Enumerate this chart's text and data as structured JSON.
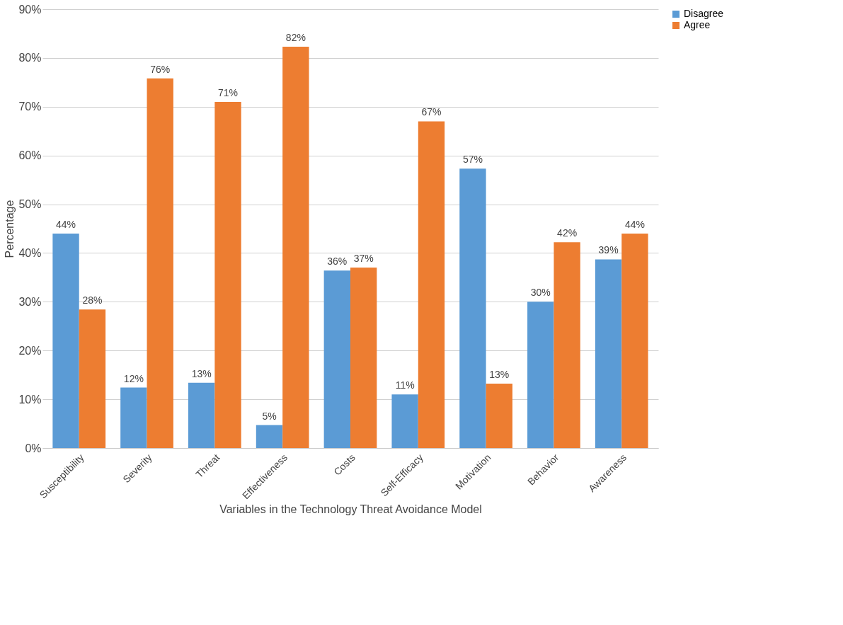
{
  "chart_data": {
    "type": "bar",
    "xlabel": "Variables in the Technology Threat Avoidance Model",
    "ylabel": "Percentage",
    "categories": [
      "Susceptibility",
      "Severity",
      "Threat",
      "Effectiveness",
      "Costs",
      "Self-Efficacy",
      "Motivation",
      "Behavior",
      "Awareness"
    ],
    "series": [
      {
        "name": "Disagree",
        "color": "#5b9bd5",
        "values": [
          44,
          12.4,
          13.4,
          4.7,
          36.4,
          11,
          57.3,
          30,
          38.7
        ],
        "value_labels": [
          "44%",
          "12%",
          "13%",
          "5%",
          "36%",
          "11%",
          "57%",
          "30%",
          "39%"
        ]
      },
      {
        "name": "Agree",
        "color": "#ed7d31",
        "values": [
          28.4,
          75.8,
          71,
          82.3,
          37,
          67,
          13.2,
          42.2,
          44
        ],
        "value_labels": [
          "28%",
          "76%",
          "71%",
          "82%",
          "37%",
          "67%",
          "13%",
          "42%",
          "44%"
        ]
      }
    ],
    "ylim": [
      0,
      90
    ],
    "yticks": [
      {
        "value": 0,
        "label": "0%"
      },
      {
        "value": 10,
        "label": "10%"
      },
      {
        "value": 20,
        "label": "20%"
      },
      {
        "value": 30,
        "label": "30%"
      },
      {
        "value": 40,
        "label": "40%"
      },
      {
        "value": 50,
        "label": "50%"
      },
      {
        "value": 60,
        "label": "60%"
      },
      {
        "value": 70,
        "label": "70%"
      },
      {
        "value": 80,
        "label": "80%"
      },
      {
        "value": 90,
        "label": "90%"
      }
    ],
    "grid": "y",
    "legend": "right"
  }
}
